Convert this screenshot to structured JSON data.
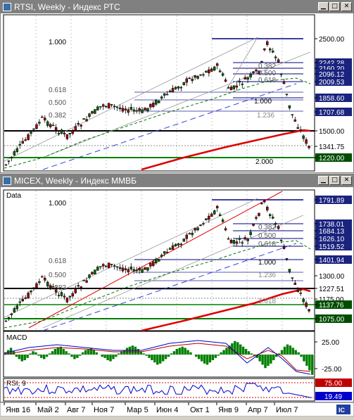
{
  "windows": {
    "rtsi": {
      "title": "RTSI, Weekly - Индекс РТС",
      "fib_labels": [
        "1.000",
        "0.618",
        "0.500",
        "0.382",
        "1.000",
        "1.236",
        "2.000",
        "0.382",
        "0.500",
        "0.618"
      ],
      "price_labels": [
        "2500.00",
        "2242.28",
        "2160.20",
        "2096.12",
        "2009.53",
        "1858.60",
        "1707.68",
        "1500.00",
        "1341.75",
        "1220.00"
      ]
    },
    "micex": {
      "title": "MICEX, Weekly - Индекс ММВБ",
      "data_label": "Data",
      "fib_labels": [
        "1.000",
        "0.618",
        "0.500",
        "0.382",
        "1.000",
        "1.236",
        "1.618",
        "0.382",
        "0.500",
        "0.618"
      ],
      "price_labels": [
        "1791.89",
        "1738.01",
        "1684.13",
        "1626.10",
        "1519.52",
        "1401.94",
        "1300.00",
        "1227.51",
        "1175.00",
        "1137.76",
        "1075.00"
      ]
    }
  },
  "macd": {
    "label": "MACD",
    "levels": [
      "25.00",
      "-25.00"
    ]
  },
  "rsi": {
    "label": "RSI, 9",
    "levels": [
      "75.00",
      "19.49"
    ]
  },
  "time_axis": [
    "Янв 16",
    "Май 2",
    "Авг 7",
    "Ноя 7",
    "Мар 5",
    "Июн 4",
    "Окт 1",
    "Янв 9",
    "Апр 7",
    "Июл 7"
  ],
  "colors": {
    "title_inactive": "#808080",
    "price_box": "#1a237e",
    "support_box": "#004d00",
    "rsi_box": "#0000cc",
    "candle_up": "#006400",
    "candle_down": "#990000",
    "ma_long": "#dd0000",
    "ma_medium": "#0000ff"
  },
  "icons": {
    "window": "chart-window-icon",
    "minimize": "minimize-icon",
    "maximize": "maximize-icon",
    "close": "close-icon"
  }
}
